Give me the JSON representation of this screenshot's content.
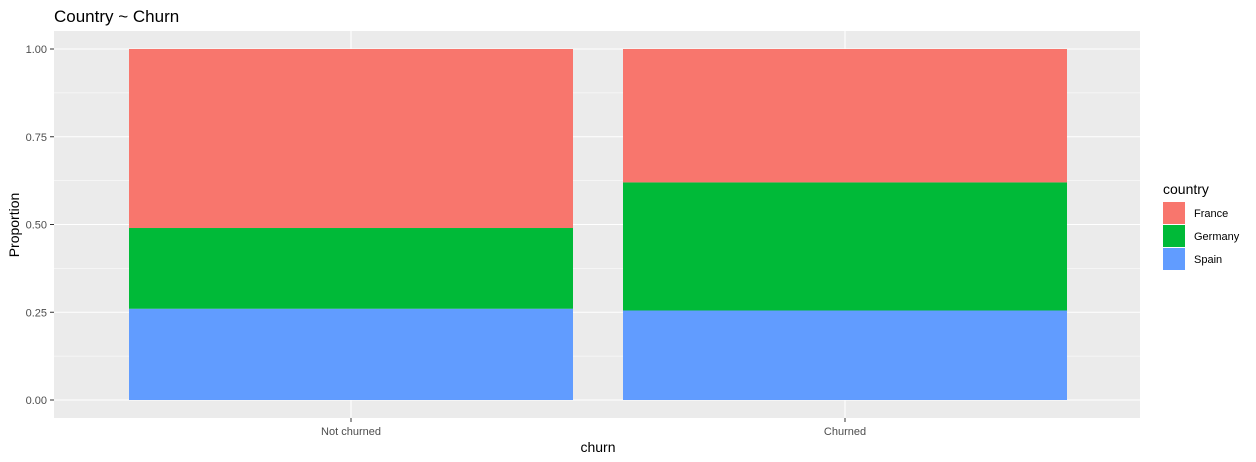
{
  "chart_data": {
    "type": "bar",
    "stacked": true,
    "title": "Country ~ Churn",
    "xlabel": "churn",
    "ylabel": "Proportion",
    "ylim": [
      0,
      1
    ],
    "y_ticks": [
      "0.00",
      "0.25",
      "0.50",
      "0.75",
      "1.00"
    ],
    "categories": [
      "Not churned",
      "Churned"
    ],
    "series": [
      {
        "name": "France",
        "color": "#F8766D",
        "values": [
          0.51,
          0.38
        ]
      },
      {
        "name": "Germany",
        "color": "#00BA38",
        "values": [
          0.23,
          0.365
        ]
      },
      {
        "name": "Spain",
        "color": "#619CFF",
        "values": [
          0.26,
          0.255
        ]
      }
    ],
    "legend": {
      "title": "country",
      "position": "right"
    },
    "grid": true,
    "panel_background": "#EBEBEB"
  }
}
